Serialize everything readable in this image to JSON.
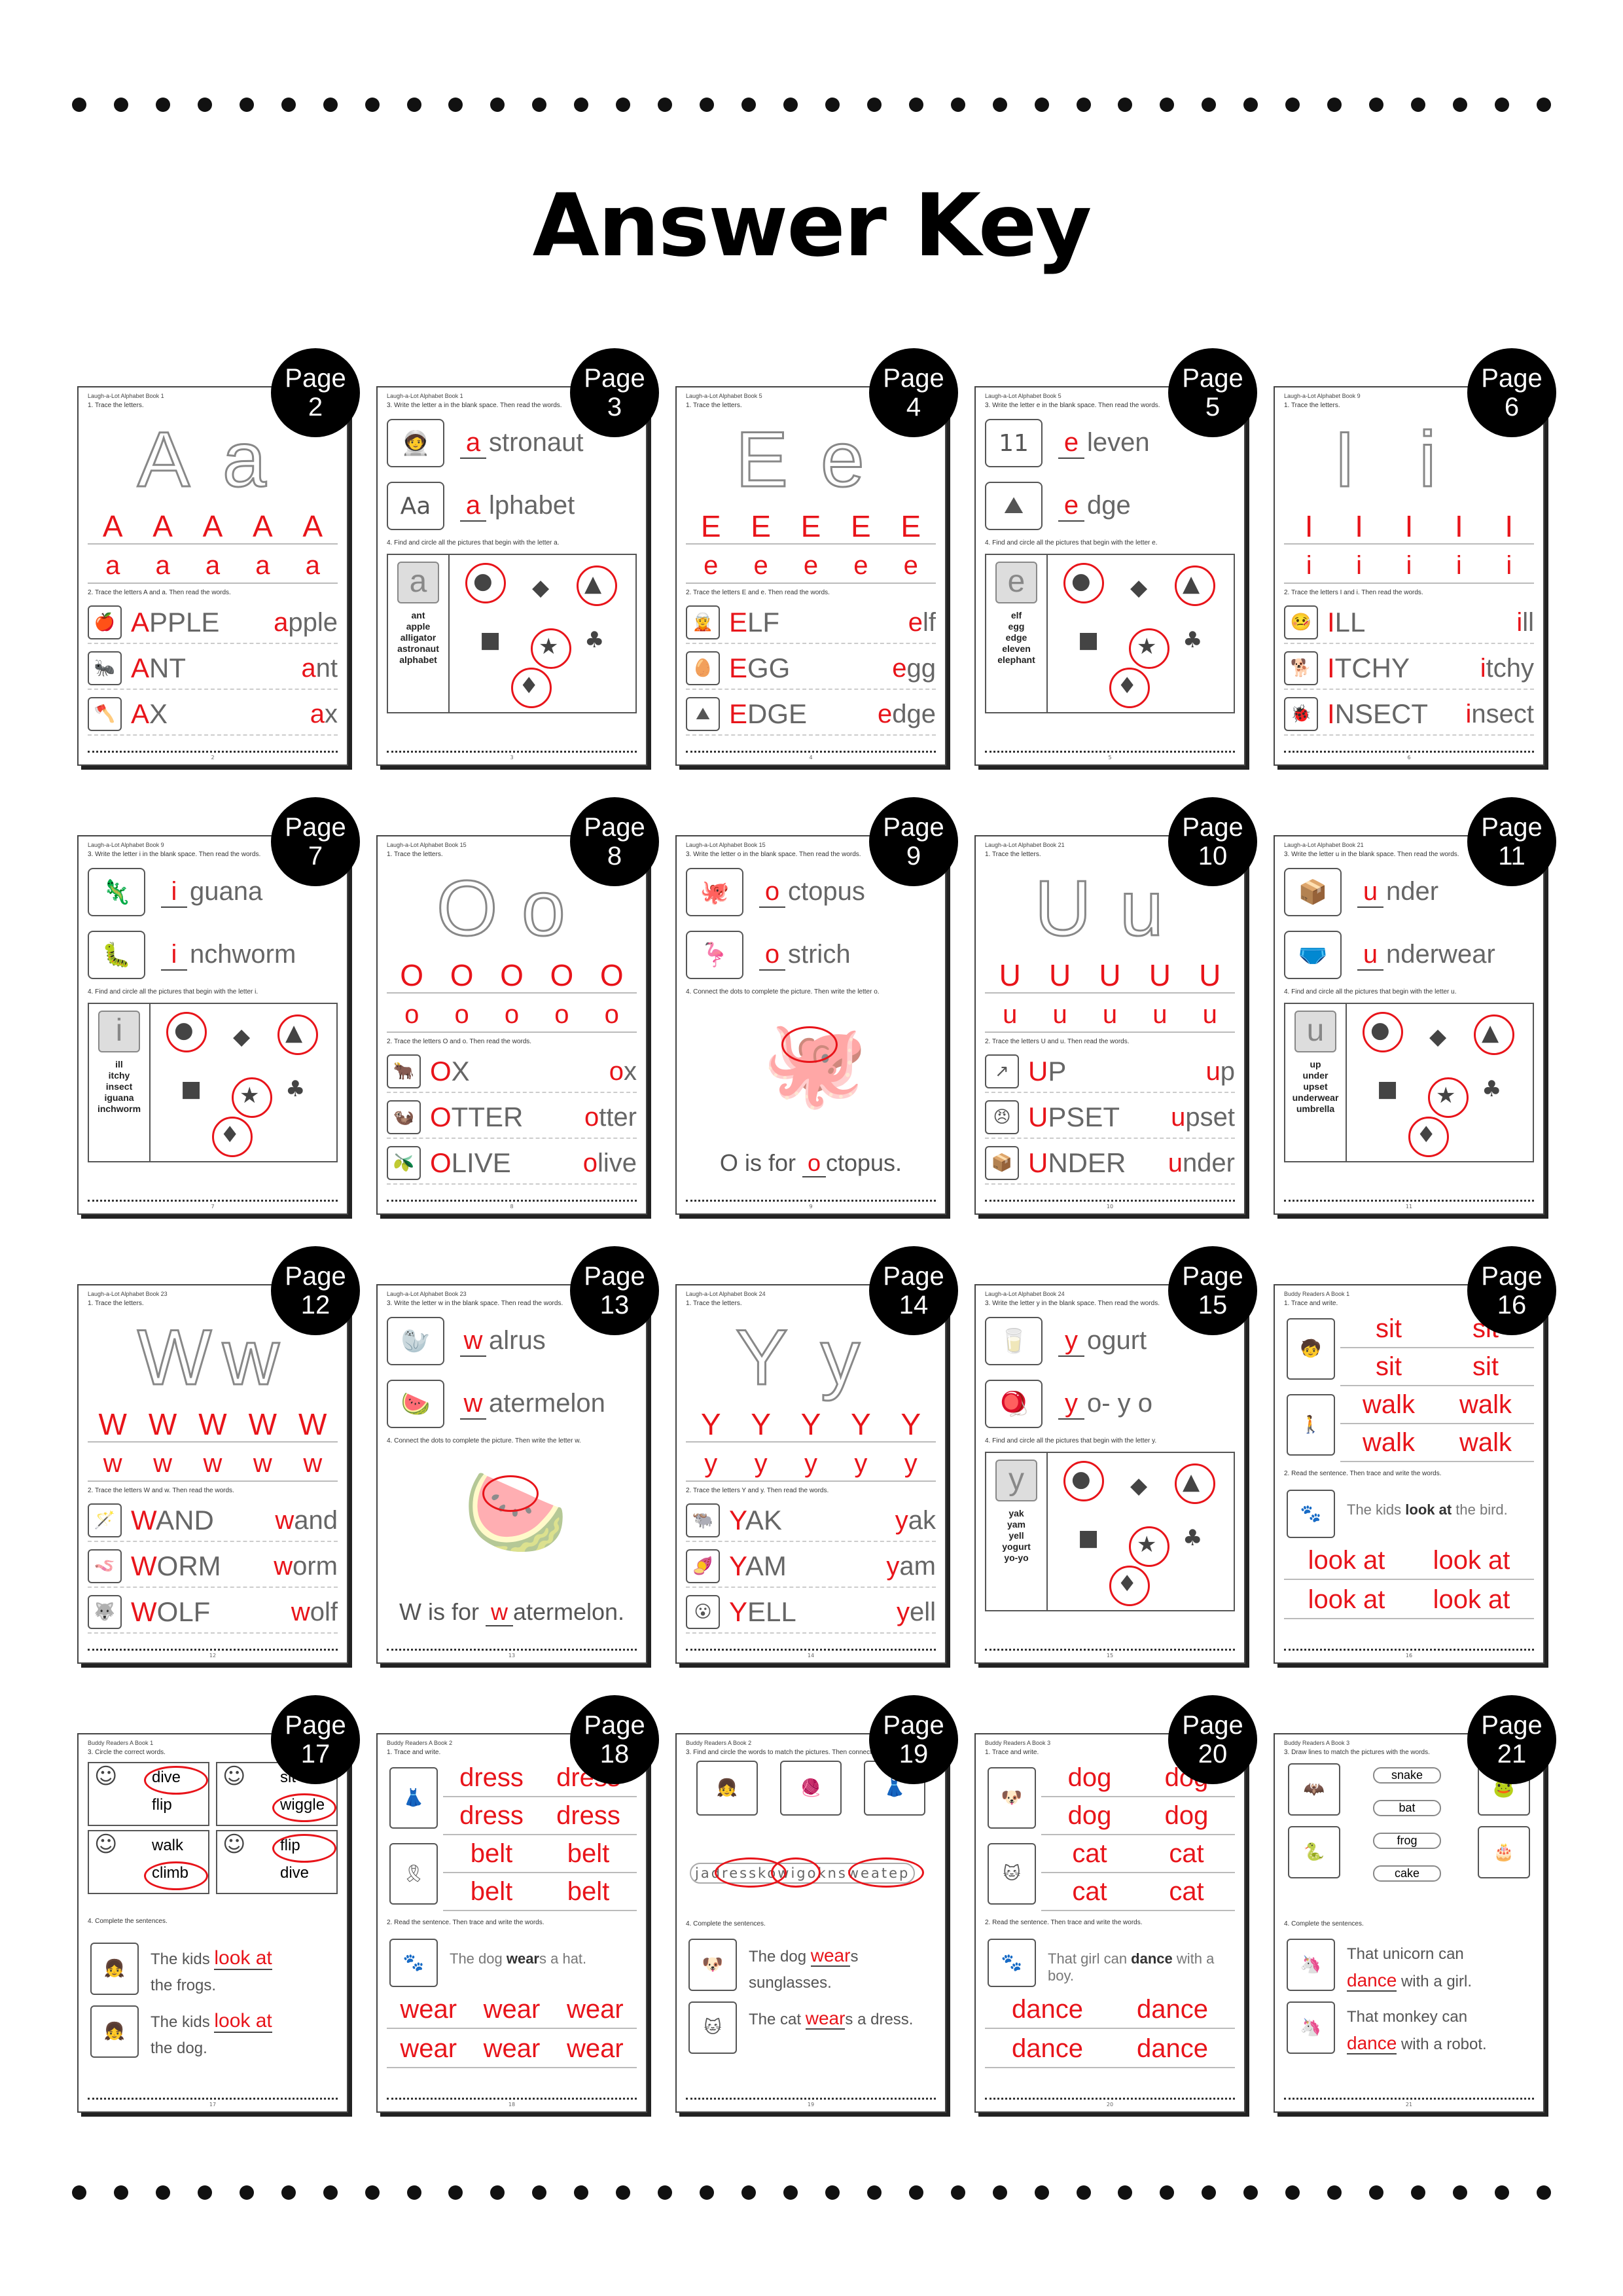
{
  "title": "Answer Key",
  "badge_word": "Page",
  "pages": [
    {
      "num": "2",
      "header": "Laugh-a-Lot Alphabet Book 1",
      "kind": "trace",
      "ins1": "1. Trace the letters.",
      "big": [
        "A",
        "a"
      ],
      "row1": [
        "A",
        "A",
        "A",
        "A",
        "A"
      ],
      "row2": [
        "a",
        "a",
        "a",
        "a",
        "a"
      ],
      "ins2": "2. Trace the letters A and a. Then read the words.",
      "words": [
        [
          "APPLE",
          "apple"
        ],
        [
          "ANT",
          "ant"
        ],
        [
          "AX",
          "ax"
        ]
      ],
      "icons": [
        "🍎",
        "🐜",
        "🪓"
      ],
      "foot": "2"
    },
    {
      "num": "3",
      "header": "Laugh-a-Lot Alphabet Book 1",
      "kind": "fill",
      "ins1": "3. Write the letter a in the blank space. Then read the words.",
      "fills": [
        [
          "a",
          "stronaut"
        ],
        [
          "a",
          "lphabet"
        ]
      ],
      "fillicons": [
        "🧑‍🚀",
        "Aa"
      ],
      "ins2": "4. Find and circle all the pictures that begin with the letter a.",
      "boxletter": "a",
      "boxwords": [
        "ant",
        "apple",
        "alligator",
        "astronaut",
        "alphabet"
      ],
      "foot": "3"
    },
    {
      "num": "4",
      "header": "Laugh-a-Lot Alphabet Book 5",
      "kind": "trace",
      "ins1": "1. Trace the letters.",
      "big": [
        "E",
        "e"
      ],
      "row1": [
        "E",
        "E",
        "E",
        "E",
        "E"
      ],
      "row2": [
        "e",
        "e",
        "e",
        "e",
        "e"
      ],
      "ins2": "2. Trace the letters E and e. Then read the words.",
      "words": [
        [
          "ELF",
          "elf"
        ],
        [
          "EGG",
          "egg"
        ],
        [
          "EDGE",
          "edge"
        ]
      ],
      "icons": [
        "🧝",
        "🥚",
        "⛰"
      ],
      "foot": "4"
    },
    {
      "num": "5",
      "header": "Laugh-a-Lot Alphabet Book 5",
      "kind": "fill",
      "ins1": "3. Write the letter e in the blank space. Then read the words.",
      "fills": [
        [
          "e",
          "leven"
        ],
        [
          "e",
          "dge"
        ]
      ],
      "fillicons": [
        "11",
        "⛰"
      ],
      "ins2": "4. Find and circle all the pictures that begin with the letter e.",
      "boxletter": "e",
      "boxwords": [
        "elf",
        "egg",
        "edge",
        "eleven",
        "elephant"
      ],
      "foot": "5"
    },
    {
      "num": "6",
      "header": "Laugh-a-Lot Alphabet Book 9",
      "kind": "trace",
      "ins1": "1. Trace the letters.",
      "big": [
        "I",
        "i"
      ],
      "row1": [
        "I",
        "I",
        "I",
        "I",
        "I"
      ],
      "row2": [
        "i",
        "i",
        "i",
        "i",
        "i"
      ],
      "ins2": "2. Trace the letters I and i. Then read the words.",
      "words": [
        [
          "ILL",
          "ill"
        ],
        [
          "ITCHY",
          "itchy"
        ],
        [
          "INSECT",
          "insect"
        ]
      ],
      "icons": [
        "🤒",
        "🐕",
        "🐞"
      ],
      "foot": "6"
    },
    {
      "num": "7",
      "header": "Laugh-a-Lot Alphabet Book 9",
      "kind": "fill",
      "ins1": "3. Write the letter i in the blank space. Then read the words.",
      "fills": [
        [
          "i",
          "guana"
        ],
        [
          "i",
          "nchworm"
        ]
      ],
      "fillicons": [
        "🦎",
        "🐛"
      ],
      "ins2": "4. Find and circle all the pictures that begin with the letter i.",
      "boxletter": "i",
      "boxwords": [
        "ill",
        "itchy",
        "insect",
        "iguana",
        "inchworm"
      ],
      "foot": "7"
    },
    {
      "num": "8",
      "header": "Laugh-a-Lot Alphabet Book 15",
      "kind": "trace",
      "ins1": "1. Trace the letters.",
      "big": [
        "O",
        "o"
      ],
      "row1": [
        "O",
        "O",
        "O",
        "O",
        "O"
      ],
      "row2": [
        "o",
        "o",
        "o",
        "o",
        "o"
      ],
      "ins2": "2. Trace the letters O and o. Then read the words.",
      "words": [
        [
          "OX",
          "ox"
        ],
        [
          "OTTER",
          "otter"
        ],
        [
          "OLIVE",
          "olive"
        ]
      ],
      "icons": [
        "🐂",
        "🦦",
        "🫒"
      ],
      "foot": "8"
    },
    {
      "num": "9",
      "header": "Laugh-a-Lot Alphabet Book 15",
      "kind": "dots",
      "ins1": "3. Write the letter o in the blank space. Then read the words.",
      "fills": [
        [
          "o",
          "ctopus"
        ],
        [
          "o",
          "strich"
        ]
      ],
      "fillicons": [
        "🐙",
        "🦩"
      ],
      "ins2": "4. Connect the dots to complete the picture. Then write the letter o.",
      "dotpic": "🐙",
      "sentence": [
        "O",
        " is for ",
        "o",
        "ctopus."
      ],
      "foot": "9"
    },
    {
      "num": "10",
      "header": "Laugh-a-Lot Alphabet Book 21",
      "kind": "trace",
      "ins1": "1. Trace the letters.",
      "big": [
        "U",
        "u"
      ],
      "row1": [
        "U",
        "U",
        "U",
        "U",
        "U"
      ],
      "row2": [
        "u",
        "u",
        "u",
        "u",
        "u"
      ],
      "ins2": "2. Trace the letters U and u. Then read the words.",
      "words": [
        [
          "UP",
          "up"
        ],
        [
          "UPSET",
          "upset"
        ],
        [
          "UNDER",
          "under"
        ]
      ],
      "icons": [
        "↗",
        "😠",
        "📦"
      ],
      "foot": "10"
    },
    {
      "num": "11",
      "header": "Laugh-a-Lot Alphabet Book 21",
      "kind": "fill",
      "ins1": "3. Write the letter u in the blank space. Then read the words.",
      "fills": [
        [
          "u",
          "nder"
        ],
        [
          "u",
          "nderwear"
        ]
      ],
      "fillicons": [
        "📦",
        "🩲"
      ],
      "ins2": "4. Find and circle all the pictures that begin with the letter u.",
      "boxletter": "u",
      "boxwords": [
        "up",
        "under",
        "upset",
        "underwear",
        "umbrella"
      ],
      "foot": "11"
    },
    {
      "num": "12",
      "header": "Laugh-a-Lot Alphabet Book 23",
      "kind": "trace",
      "ins1": "1. Trace the letters.",
      "big": [
        "W",
        "w"
      ],
      "row1": [
        "W",
        "W",
        "W",
        "W",
        "W"
      ],
      "row2": [
        "w",
        "w",
        "w",
        "w",
        "w"
      ],
      "ins2": "2. Trace the letters W and w. Then read the words.",
      "words": [
        [
          "WAND",
          "wand"
        ],
        [
          "WORM",
          "worm"
        ],
        [
          "WOLF",
          "wolf"
        ]
      ],
      "icons": [
        "🪄",
        "🪱",
        "🐺"
      ],
      "foot": "12"
    },
    {
      "num": "13",
      "header": "Laugh-a-Lot Alphabet Book 23",
      "kind": "dots",
      "ins1": "3. Write the letter w in the blank space. Then read the words.",
      "fills": [
        [
          "w",
          "alrus"
        ],
        [
          "w",
          "atermelon"
        ]
      ],
      "fillicons": [
        "🦭",
        "🍉"
      ],
      "ins2": "4. Connect the dots to complete the picture. Then write the letter w.",
      "dotpic": "🍉",
      "sentence": [
        "W",
        " is for ",
        "w",
        "atermelon."
      ],
      "foot": "13"
    },
    {
      "num": "14",
      "header": "Laugh-a-Lot Alphabet Book 24",
      "kind": "trace",
      "ins1": "1. Trace the letters.",
      "big": [
        "Y",
        "y"
      ],
      "row1": [
        "Y",
        "Y",
        "Y",
        "Y",
        "Y"
      ],
      "row2": [
        "y",
        "y",
        "y",
        "y",
        "y"
      ],
      "ins2": "2. Trace the letters Y and y. Then read the words.",
      "words": [
        [
          "YAK",
          "yak"
        ],
        [
          "YAM",
          "yam"
        ],
        [
          "YELL",
          "yell"
        ]
      ],
      "icons": [
        "🐃",
        "🍠",
        "😮"
      ],
      "foot": "14"
    },
    {
      "num": "15",
      "header": "Laugh-a-Lot Alphabet Book 24",
      "kind": "fill",
      "ins1": "3. Write the letter y in the blank space. Then read the words.",
      "fills": [
        [
          "y",
          "ogurt"
        ],
        [
          "y",
          "o- y o"
        ]
      ],
      "fillicons": [
        "🥛",
        "🪀"
      ],
      "ins2": "4. Find and circle all the pictures that begin with the letter y.",
      "boxletter": "y",
      "boxwords": [
        "yak",
        "yam",
        "yell",
        "yogurt",
        "yo-yo"
      ],
      "foot": "15"
    },
    {
      "num": "16",
      "header": "Buddy Readers A Book 1",
      "kind": "twowords",
      "ins1": "1. Trace and write.",
      "pairs": [
        [
          "sit",
          "sit"
        ],
        [
          "sit",
          "sit"
        ],
        [
          "walk",
          "walk"
        ],
        [
          "walk",
          "walk"
        ]
      ],
      "icons": [
        "🧒",
        "🚶"
      ],
      "ins2": "2. Read the sentence. Then trace and write the words.",
      "sentence": [
        "The kids ",
        "look at",
        " the bird."
      ],
      "trace": [
        [
          "look at",
          "look at"
        ],
        [
          "look at",
          "look at"
        ]
      ],
      "foot": "16"
    },
    {
      "num": "17",
      "header": "Buddy Readers A Book 1",
      "kind": "circle",
      "ins1": "3. Circle the correct words.",
      "options": [
        [
          "dive",
          "flip"
        ],
        [
          "sit",
          "wiggle"
        ],
        [
          "walk",
          "climb"
        ],
        [
          "flip",
          "dive"
        ]
      ],
      "ins2": "4. Complete the sentences.",
      "complete": [
        [
          "The kids",
          "look at",
          "the frogs."
        ],
        [
          "The kids",
          "look at",
          "the dog."
        ]
      ],
      "foot": "17"
    },
    {
      "num": "18",
      "header": "Buddy Readers A Book 2",
      "kind": "twowords",
      "ins1": "1. Trace and write.",
      "pairs": [
        [
          "dress",
          "dress"
        ],
        [
          "dress",
          "dress"
        ],
        [
          "belt",
          "belt"
        ],
        [
          "belt",
          "belt"
        ]
      ],
      "icons": [
        "👗",
        "🎗"
      ],
      "ins2": "2. Read the sentence. Then trace and write the words.",
      "sentence": [
        "The dog ",
        "wear",
        "s a hat."
      ],
      "trace": [
        [
          "wear",
          "wear",
          "wear"
        ],
        [
          "wear",
          "wear",
          "wear"
        ]
      ],
      "foot": "18"
    },
    {
      "num": "19",
      "header": "Buddy Readers A Book 2",
      "kind": "search",
      "ins1": "3. Find and circle the words to match the pictures. Then connect them.",
      "searchrow": "jadresskowigoknsweatep",
      "ins2": "4. Complete the sentences.",
      "complete": [
        [
          "The dog",
          "wear",
          "s sunglasses."
        ],
        [
          "The cat",
          "wear",
          "s a dress."
        ]
      ],
      "foot": "19"
    },
    {
      "num": "20",
      "header": "Buddy Readers A Book 3",
      "kind": "twowords",
      "ins1": "1. Trace and write.",
      "pairs": [
        [
          "dog",
          "dog"
        ],
        [
          "dog",
          "dog"
        ],
        [
          "cat",
          "cat"
        ],
        [
          "cat",
          "cat"
        ]
      ],
      "icons": [
        "🐶",
        "🐱"
      ],
      "ins2": "2. Read the sentence. Then trace and write the words.",
      "sentence": [
        "That girl can ",
        "dance",
        " with a boy."
      ],
      "trace": [
        [
          "dance",
          "dance"
        ],
        [
          "dance",
          "dance"
        ]
      ],
      "foot": "20"
    },
    {
      "num": "21",
      "header": "Buddy Readers A Book 3",
      "kind": "match",
      "ins1": "3. Draw lines to match the pictures with the words.",
      "matchwords": [
        "snake",
        "bat",
        "frog",
        "cake"
      ],
      "ins2": "4. Complete the sentences.",
      "complete": [
        [
          "That unicorn can",
          "dance",
          "with a girl."
        ],
        [
          "That monkey can",
          "dance",
          "with a robot."
        ]
      ],
      "foot": "21"
    }
  ]
}
